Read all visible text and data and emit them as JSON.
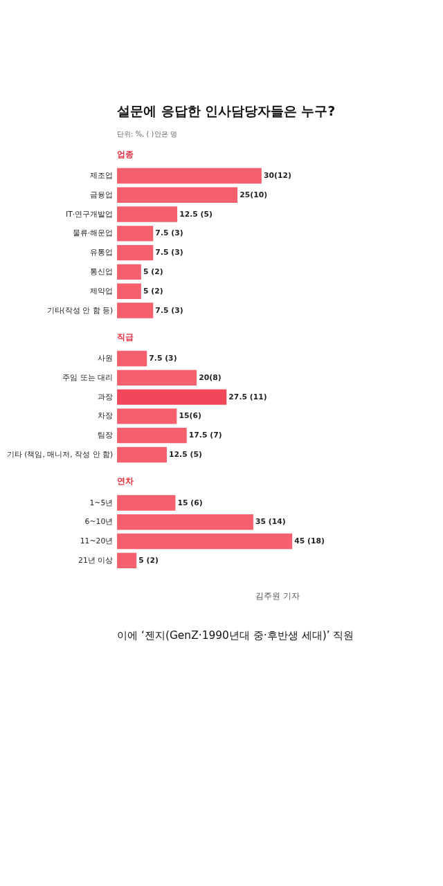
{
  "chart_data": [
    {
      "type": "bar",
      "orientation": "horizontal",
      "title": "설문에 응답한 인사담당자들은 누구?",
      "subtitle": "단위: %, ( )안은 명",
      "annotations": [
        "업종"
      ],
      "categories": [
        "제조업",
        "금융업",
        "IT·연구개발업",
        "물류·해운업",
        "유통업",
        "통신업",
        "제약업",
        "기타(작성 안 함 등)"
      ],
      "values": [
        30,
        25,
        12.5,
        7.5,
        7.5,
        5,
        5,
        7.5
      ],
      "value_labels": [
        "30(12)",
        "25(10)",
        "12.5 (5)",
        "7.5 (3)",
        "7.5 (3)",
        "5 (2)",
        "5 (2)",
        "7.5 (3)"
      ],
      "color": "#f5606f"
    },
    {
      "type": "bar",
      "orientation": "horizontal",
      "title": "직급",
      "categories": [
        "사원",
        "주임 또는 대리",
        "과장",
        "차장",
        "팀장",
        "기타 (책임, 매니저, 작성 안 함)"
      ],
      "values": [
        7.5,
        20,
        27.5,
        15,
        17.5,
        12.5
      ],
      "value_labels": [
        "7.5 (3)",
        "20(8)",
        "27.5 (11)",
        "15(6)",
        "17.5 (7)",
        "12.5 (5)"
      ],
      "colors": [
        "#f5606f",
        "#f5606f",
        "#f0485a",
        "#f5606f",
        "#f5606f",
        "#f5606f"
      ]
    },
    {
      "type": "bar",
      "orientation": "horizontal",
      "title": "연차",
      "annotations": [
        "김주원 기자",
        "이에 ‘젠지(GenZ·1990년대 중·후반생 세대)’ 직원"
      ],
      "categories": [
        "1~5년",
        "6~10년",
        "11~20년",
        "21년 이상"
      ],
      "values": [
        15,
        35,
        45,
        5
      ],
      "value_labels": [
        "15 (6)",
        "35 (14)",
        "45 (18)",
        "5 (2)"
      ],
      "color": "#f5606f"
    }
  ]
}
